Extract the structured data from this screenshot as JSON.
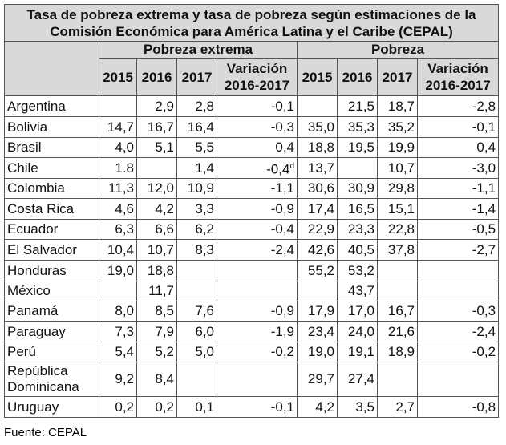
{
  "header": {
    "title": "Tasa de pobreza extrema y tasa de pobreza según estimaciones de la Comisión Económica para América Latina y el Caribe (CEPAL)",
    "groups": [
      "Pobreza extrema",
      "Pobreza"
    ],
    "columns": [
      "2015",
      "2016",
      "2017",
      "Variación 2016-2017"
    ]
  },
  "table": {
    "rows": [
      {
        "country": "Argentina",
        "cells": [
          null,
          "2,9",
          "2,8",
          "-0,1",
          null,
          "21,5",
          "18,7",
          "-2,8"
        ]
      },
      {
        "country": "Bolivia",
        "cells": [
          "14,7",
          "16,7",
          "16,4",
          "-0,3",
          "35,0",
          "35,3",
          "35,2",
          "-0,1"
        ]
      },
      {
        "country": "Brasil",
        "cells": [
          "4,0",
          "5,1",
          "5,5",
          "0,4",
          "18,8",
          "19,5",
          "19,9",
          "0,4"
        ]
      },
      {
        "country": "Chile",
        "cells": [
          "1.8",
          null,
          "1,4",
          {
            "value": "-0,4",
            "note": "d"
          },
          "13,7",
          null,
          "10,7",
          "-3,0"
        ]
      },
      {
        "country": "Colombia",
        "cells": [
          "11,3",
          "12,0",
          "10,9",
          "-1,1",
          "30,6",
          "30,9",
          "29,8",
          "-1,1"
        ]
      },
      {
        "country": "Costa Rica",
        "cells": [
          "4,6",
          "4,2",
          "3,3",
          "-0,9",
          "17,4",
          "16,5",
          "15,1",
          "-1,4"
        ]
      },
      {
        "country": "Ecuador",
        "cells": [
          "6,3",
          "6,6",
          "6,2",
          "-0,4",
          "22,9",
          "23,3",
          "22,8",
          "-0,5"
        ]
      },
      {
        "country": "El Salvador",
        "cells": [
          "10,4",
          "10,7",
          "8,3",
          "-2,4",
          "42,6",
          "40,5",
          "37,8",
          "-2,7"
        ]
      },
      {
        "country": "Honduras",
        "cells": [
          "19,0",
          "18,8",
          null,
          null,
          "55,2",
          "53,2",
          null,
          null
        ]
      },
      {
        "country": "México",
        "cells": [
          null,
          "11,7",
          null,
          null,
          null,
          "43,7",
          null,
          null
        ]
      },
      {
        "country": "Panamá",
        "cells": [
          "8,0",
          "8,5",
          "7,6",
          "-0,9",
          "17,9",
          "17,0",
          "16,7",
          "-0,3"
        ]
      },
      {
        "country": "Paraguay",
        "cells": [
          "7,3",
          "7,9",
          "6,0",
          "-1,9",
          "23,4",
          "24,0",
          "21,6",
          "-2,4"
        ]
      },
      {
        "country": "Perú",
        "cells": [
          "5,4",
          "5,2",
          "5,0",
          "-0,2",
          "19,0",
          "19,1",
          "18,9",
          "-0,2"
        ]
      },
      {
        "country": "República Dominicana",
        "cells": [
          "9,2",
          "8,4",
          null,
          null,
          "29,7",
          "27,4",
          null,
          null
        ]
      },
      {
        "country": "Uruguay",
        "cells": [
          "0,2",
          "0,2",
          "0,1",
          "-0,1",
          "4,2",
          "3,5",
          "2,7",
          "-0,8"
        ]
      }
    ]
  },
  "footer": {
    "source": "Fuente: CEPAL"
  }
}
